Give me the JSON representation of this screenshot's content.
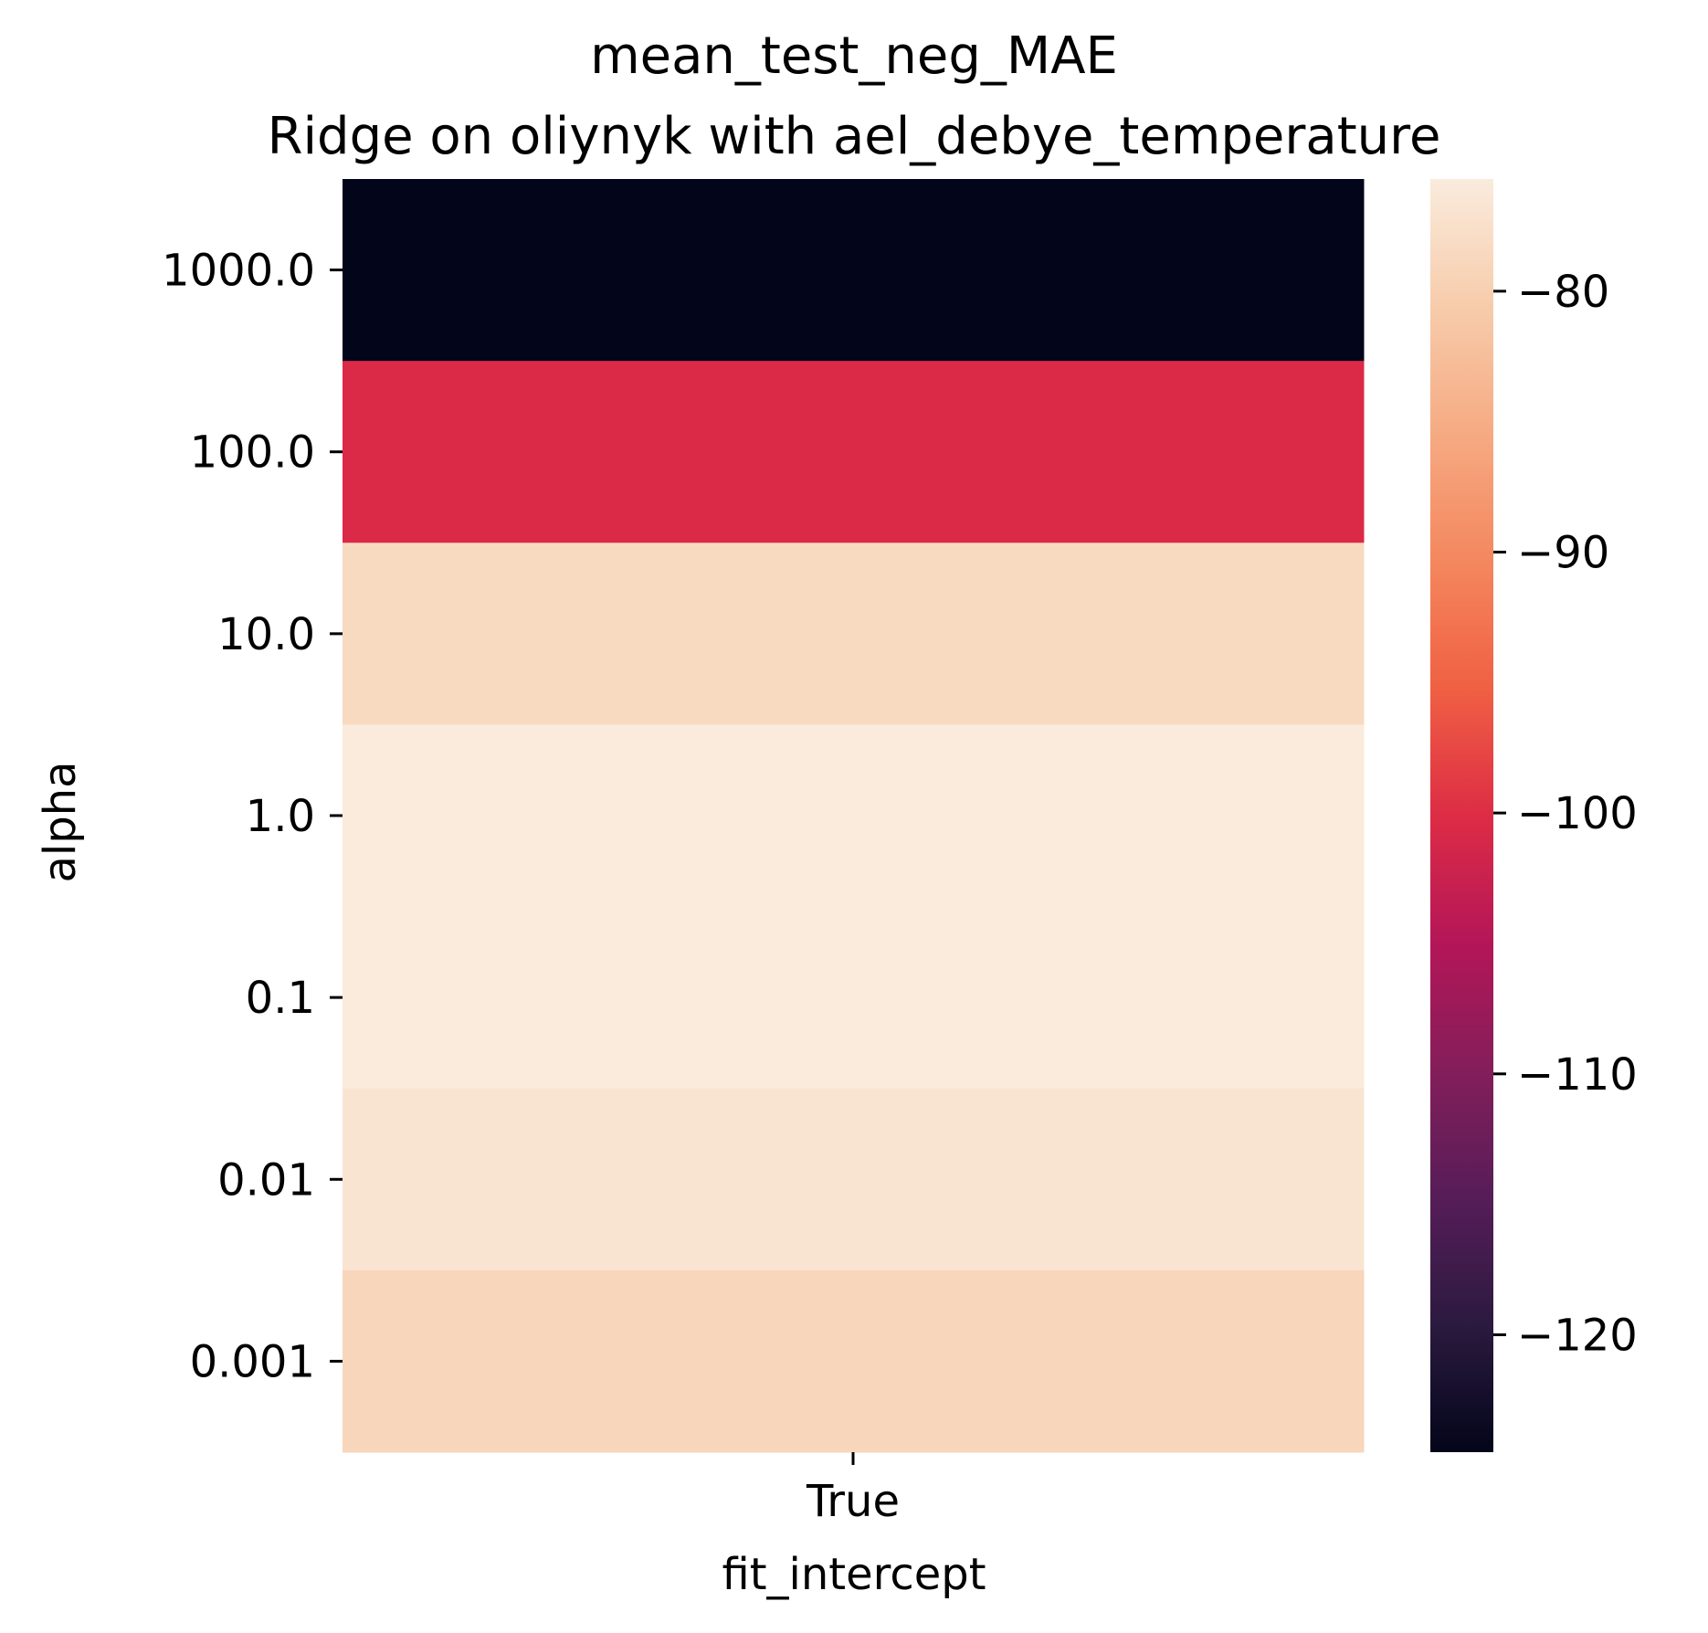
{
  "chart_data": {
    "type": "heatmap",
    "title": "mean_test_neg_MAE",
    "subtitle": "Ridge on oliynyk with ael_debye_temperature",
    "xlabel": "fit_intercept",
    "ylabel": "alpha",
    "x_categories": [
      "True"
    ],
    "y_categories": [
      "1000.0",
      "100.0",
      "10.0",
      "1.0",
      "0.1",
      "0.01",
      "0.001"
    ],
    "values": [
      [
        -124.5
      ],
      [
        -100.5
      ],
      [
        -78.4
      ],
      [
        -75.7
      ],
      [
        -75.7
      ],
      [
        -76.8
      ],
      [
        -79.0
      ]
    ],
    "colorbar": {
      "vmin": -124.5,
      "vmax": -75.7,
      "ticks": [
        -80,
        -90,
        -100,
        -110,
        -120
      ],
      "tick_labels": [
        "−80",
        "−90",
        "−100",
        "−110",
        "−120"
      ],
      "colormap_stops": [
        "#03051a",
        "#2b1a3f",
        "#561d58",
        "#841e5a",
        "#b41658",
        "#dd2c45",
        "#f06043",
        "#f4875e",
        "#f6aa82",
        "#f7ccab",
        "#faebdd"
      ]
    },
    "grid": false,
    "legend": "colorbar-right"
  }
}
